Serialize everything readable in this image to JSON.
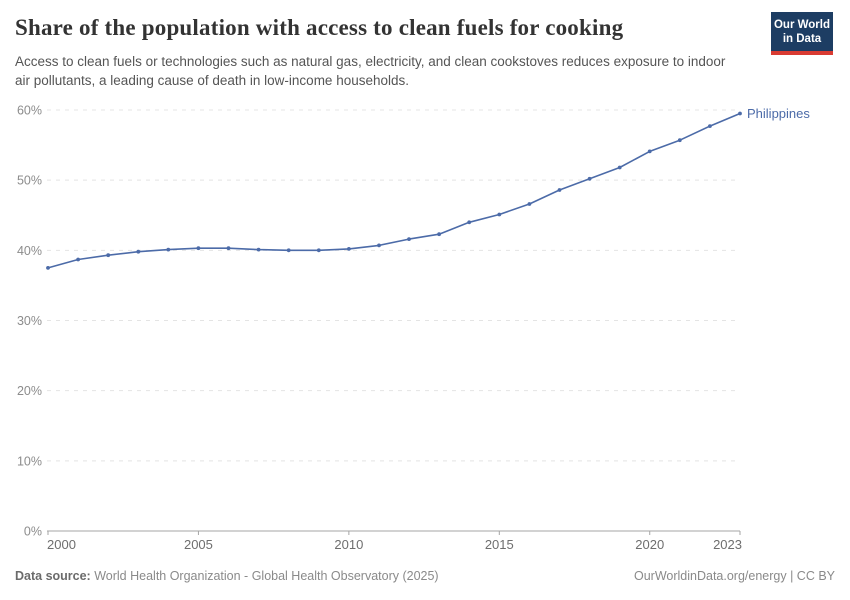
{
  "header": {
    "title": "Share of the population with access to clean fuels for cooking",
    "subtitle": "Access to clean fuels or technologies such as natural gas, electricity, and clean cookstoves reduces exposure to indoor air pollutants, a leading cause of death in low-income households.",
    "logo": {
      "line1": "Our World",
      "line2": "in Data",
      "bg_color": "#1d3d63",
      "accent_color": "#d93b32"
    }
  },
  "chart_data": {
    "type": "line",
    "title": "Share of the population with access to clean fuels for cooking",
    "xlabel": "",
    "ylabel": "",
    "x": [
      2000,
      2001,
      2002,
      2003,
      2004,
      2005,
      2006,
      2007,
      2008,
      2009,
      2010,
      2011,
      2012,
      2013,
      2014,
      2015,
      2016,
      2017,
      2018,
      2019,
      2020,
      2021,
      2022,
      2023
    ],
    "series": [
      {
        "name": "Philippines",
        "color": "#4c6ba8",
        "values": [
          37.5,
          38.7,
          39.3,
          39.8,
          40.1,
          40.3,
          40.3,
          40.1,
          40.0,
          40.0,
          40.2,
          40.7,
          41.6,
          42.3,
          44.0,
          45.1,
          46.6,
          48.6,
          50.2,
          51.8,
          54.1,
          55.7,
          57.7,
          59.5
        ]
      }
    ],
    "ylim": [
      0,
      60
    ],
    "yticks": [
      0,
      10,
      20,
      30,
      40,
      50,
      60
    ],
    "ytick_suffix": "%",
    "xticks": [
      2000,
      2005,
      2010,
      2015,
      2020,
      2023
    ],
    "grid": "horizontal-dashed",
    "legend_position": "end-of-line-label",
    "grid_color": "#e4e4e4",
    "axis_color": "#a5a5a5",
    "ytick_label_color": "#8c8c8c",
    "xtick_label_color": "#6e6e6e"
  },
  "footer": {
    "source_label": "Data source:",
    "source_text": "World Health Organization - Global Health Observatory (2025)",
    "link_text": "OurWorldinData.org/energy | CC BY"
  }
}
